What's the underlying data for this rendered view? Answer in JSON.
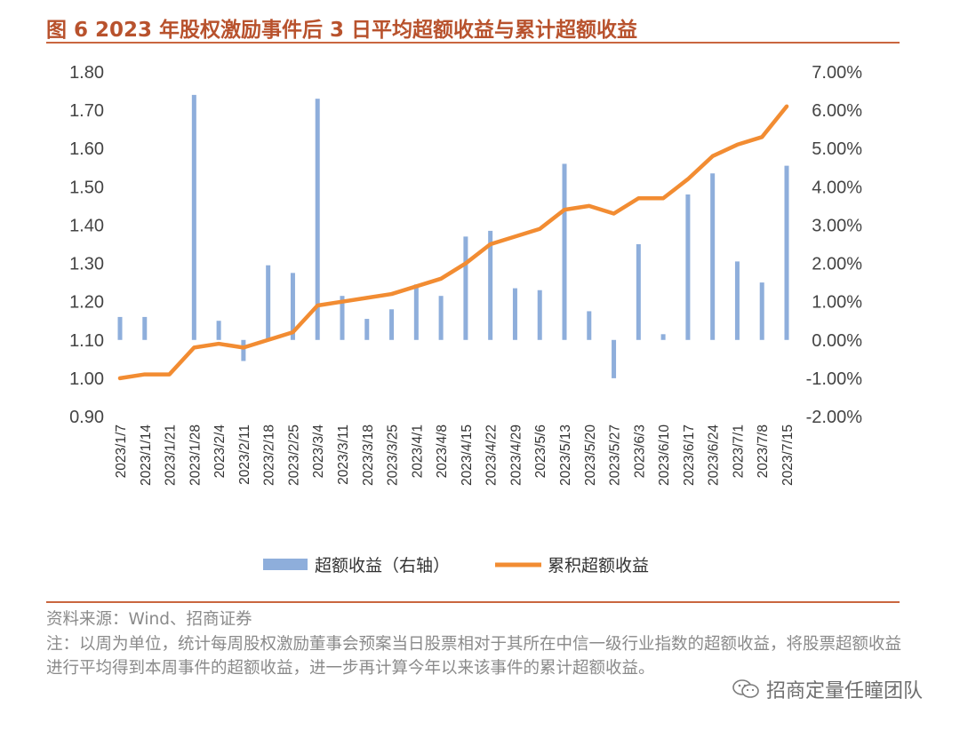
{
  "figure": {
    "title": "图 6  2023 年股权激励事件后 3 日平均超额收益与累计超额收益",
    "source": "资料来源：Wind、招商证券",
    "note": "注：以周为单位，统计每周股权激励董事会预案当日股票相对于其所在中信一级行业指数的超额收益，将股票超额收益进行平均得到本周事件的超额收益，进一步再计算今年以来该事件的累计超额收益。",
    "watermark": "招商定量任瞳团队"
  },
  "colors": {
    "bar": "#8eaedb",
    "line": "#f28c32",
    "rule": "#c9663f",
    "title": "#b8522d"
  },
  "chart_data": {
    "type": "bar+line",
    "categories": [
      "2023/1/7",
      "2023/1/14",
      "2023/1/21",
      "2023/1/28",
      "2023/2/4",
      "2023/2/11",
      "2023/2/18",
      "2023/2/25",
      "2023/3/4",
      "2023/3/11",
      "2023/3/18",
      "2023/3/25",
      "2023/4/1",
      "2023/4/8",
      "2023/4/15",
      "2023/4/22",
      "2023/4/29",
      "2023/5/6",
      "2023/5/13",
      "2023/5/20",
      "2023/5/27",
      "2023/6/3",
      "2023/6/10",
      "2023/6/17",
      "2023/6/24",
      "2023/7/1",
      "2023/7/8",
      "2023/7/15"
    ],
    "left_axis": {
      "min": 0.9,
      "max": 1.8,
      "ticks": [
        "1.80",
        "1.70",
        "1.60",
        "1.50",
        "1.40",
        "1.30",
        "1.20",
        "1.10",
        "1.00",
        "0.90"
      ]
    },
    "right_axis": {
      "min": -2.0,
      "max": 7.0,
      "unit": "%",
      "ticks": [
        "7.00%",
        "6.00%",
        "5.00%",
        "4.00%",
        "3.00%",
        "2.00%",
        "1.00%",
        "0.00%",
        "-1.00%",
        "-2.00%"
      ]
    },
    "series": [
      {
        "name": "超额收益（右轴）",
        "type": "bar",
        "axis": "right",
        "values": [
          0.6,
          0.6,
          null,
          6.4,
          0.5,
          -0.55,
          1.95,
          1.75,
          6.3,
          1.15,
          0.55,
          0.8,
          1.45,
          1.15,
          2.7,
          2.85,
          1.35,
          1.3,
          4.6,
          0.75,
          -1.0,
          2.5,
          0.15,
          3.8,
          4.35,
          2.05,
          1.5,
          4.55
        ]
      },
      {
        "name": "累积超额收益",
        "type": "line",
        "axis": "left",
        "values": [
          1.0,
          1.01,
          1.01,
          1.08,
          1.09,
          1.08,
          1.1,
          1.12,
          1.19,
          1.2,
          1.21,
          1.22,
          1.24,
          1.26,
          1.3,
          1.35,
          1.37,
          1.39,
          1.44,
          1.45,
          1.43,
          1.47,
          1.47,
          1.52,
          1.58,
          1.61,
          1.63,
          1.71
        ]
      }
    ],
    "legend": [
      "超额收益（右轴）",
      "累积超额收益"
    ],
    "legend_position": "bottom",
    "grid": false
  }
}
